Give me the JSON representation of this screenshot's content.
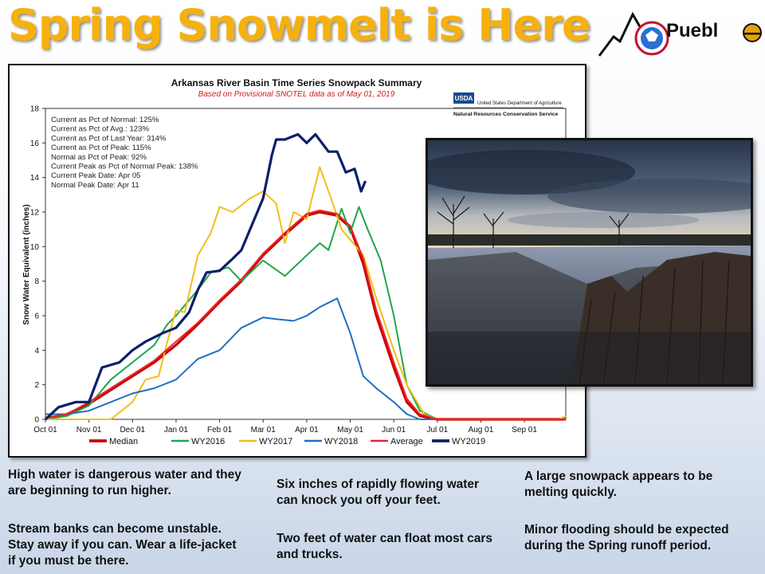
{
  "slide": {
    "title": "Spring Snowmelt is Here",
    "logo_text": "Puebl",
    "notes": {
      "left_1": "High water is dangerous water and they are beginning to run higher.",
      "left_2": "Stream banks can become unstable. Stay away if you can. Wear a life-jacket if you must be there.",
      "mid_1": "Six inches of rapidly flowing water can knock you off your feet.",
      "mid_2": "Two feet of water can float most cars and trucks.",
      "right_1": "A large snowpack appears to be melting quickly.",
      "right_2": "Minor flooding should be expected during the Spring runoff period."
    }
  },
  "chart_data": {
    "type": "line",
    "title": "Arkansas River Basin Time Series Snowpack Summary",
    "subtitle": "Based on Provisional SNOTEL data as of May 01, 2019",
    "ylabel": "Snow Water Equivalent (inches)",
    "xlabel": "",
    "ylim": [
      0,
      18
    ],
    "yticks": [
      0,
      2,
      4,
      6,
      8,
      10,
      12,
      14,
      16,
      18
    ],
    "x_tick_labels": [
      "Oct 01",
      "Nov 01",
      "Dec 01",
      "Jan 01",
      "Feb 01",
      "Mar 01",
      "Apr 01",
      "May 01",
      "Jun 01",
      "Jul 01",
      "Aug 01",
      "Sep 01"
    ],
    "x_unit": "month index from Oct 01",
    "xlim": [
      0,
      11.95
    ],
    "grid": false,
    "legend_position": "bottom",
    "source_logo": {
      "abbr": "USDA",
      "line1": "United States Department of Agriculture",
      "line2": "Natural Resources Conservation Service"
    },
    "stats": [
      "Current  as Pct of Normal: 125%",
      "Current  as Pct of Avg.: 123%",
      "Current  as Pct of Last Year: 314%",
      "Current  as Pct of Peak: 115%",
      "Normal  as Pct of Peak: 92%",
      "Current Peak as Pct of Normal Peak: 138%",
      "Current  Peak Date: Apr 05",
      "Normal Peak Date: Apr 11"
    ],
    "series": [
      {
        "name": "Median",
        "color": "#cc0000",
        "x": [
          0,
          0.5,
          1,
          1.5,
          2,
          2.5,
          3,
          3.5,
          4,
          4.5,
          5,
          5.5,
          6,
          6.3,
          6.7,
          7,
          7.3,
          7.6,
          8,
          8.3,
          8.6,
          9,
          11.95
        ],
        "y": [
          0,
          0.3,
          0.9,
          1.7,
          2.5,
          3.3,
          4.3,
          5.5,
          6.8,
          8.0,
          9.5,
          10.7,
          11.8,
          12.0,
          11.8,
          11.1,
          9.0,
          6.0,
          3.0,
          1.0,
          0.2,
          0,
          0
        ]
      },
      {
        "name": "WY2016",
        "color": "#22a54a",
        "x": [
          0,
          0.5,
          1,
          1.5,
          2,
          2.5,
          2.8,
          3,
          3.5,
          3.8,
          4.2,
          4.5,
          5,
          5.5,
          6,
          6.3,
          6.5,
          6.8,
          7,
          7.2,
          7.4,
          7.7,
          8,
          8.3,
          8.6,
          9,
          11.95
        ],
        "y": [
          0,
          0.2,
          0.8,
          2.3,
          3.3,
          4.3,
          5.5,
          6.0,
          7.5,
          8.5,
          8.8,
          8.0,
          9.2,
          8.3,
          9.5,
          10.2,
          9.8,
          12.2,
          10.8,
          12.3,
          11.0,
          9.2,
          6.0,
          2.0,
          0.5,
          0,
          0
        ]
      },
      {
        "name": "WY2017",
        "color": "#f2be1a",
        "x": [
          0,
          1,
          1.5,
          2,
          2.3,
          2.6,
          2.8,
          3,
          3.2,
          3.5,
          3.8,
          4,
          4.3,
          4.7,
          5,
          5.3,
          5.5,
          5.7,
          6,
          6.3,
          6.6,
          6.8,
          7,
          7.3,
          7.6,
          8,
          8.3,
          8.7,
          9,
          11.8,
          11.95
        ],
        "y": [
          0,
          0,
          0,
          1.0,
          2.3,
          2.5,
          4.5,
          6.3,
          6.2,
          9.5,
          10.8,
          12.3,
          12.0,
          12.8,
          13.2,
          12.5,
          10.2,
          12.0,
          11.6,
          14.6,
          12.5,
          11.0,
          10.4,
          9.5,
          7.0,
          4.0,
          2.0,
          0.3,
          0,
          0,
          0.2
        ]
      },
      {
        "name": "WY2018",
        "color": "#1f70c1",
        "x": [
          0,
          0.5,
          1,
          1.5,
          2,
          2.5,
          3,
          3.5,
          4,
          4.5,
          5,
          5.3,
          5.7,
          6,
          6.3,
          6.7,
          7,
          7.3,
          7.6,
          8,
          8.3,
          8.6,
          9,
          11.95
        ],
        "y": [
          0.3,
          0.3,
          0.5,
          1.0,
          1.5,
          1.8,
          2.3,
          3.5,
          4.0,
          5.3,
          5.9,
          5.8,
          5.7,
          6.0,
          6.5,
          7.0,
          5.0,
          2.5,
          1.8,
          1.0,
          0.3,
          0,
          0,
          0
        ]
      },
      {
        "name": "Average",
        "color": "#e8262a",
        "x": [
          0,
          0.5,
          1,
          1.5,
          2,
          2.5,
          3,
          3.5,
          4,
          4.5,
          5,
          5.5,
          6,
          6.3,
          6.7,
          7,
          7.3,
          7.6,
          8,
          8.3,
          8.6,
          9,
          11.95
        ],
        "y": [
          0.1,
          0.3,
          1.0,
          1.8,
          2.6,
          3.4,
          4.5,
          5.6,
          6.9,
          8.1,
          9.6,
          10.8,
          11.9,
          12.1,
          11.9,
          11.2,
          9.3,
          6.3,
          3.3,
          1.2,
          0.3,
          0,
          0
        ]
      },
      {
        "name": "WY2019",
        "color": "#0a1f6b",
        "x": [
          0,
          0.3,
          0.7,
          1,
          1.3,
          1.7,
          2,
          2.3,
          2.7,
          3,
          3.3,
          3.5,
          3.7,
          4,
          4.3,
          4.5,
          4.7,
          5,
          5.2,
          5.3,
          5.5,
          5.8,
          6,
          6.2,
          6.5,
          6.7,
          6.9,
          7.1,
          7.25,
          7.35
        ],
        "y": [
          0,
          0.7,
          1.0,
          1.0,
          3.0,
          3.3,
          4.0,
          4.5,
          5.0,
          5.3,
          6.2,
          7.5,
          8.5,
          8.6,
          9.3,
          9.8,
          11.0,
          12.8,
          15.3,
          16.2,
          16.2,
          16.5,
          16.0,
          16.5,
          15.5,
          15.5,
          14.3,
          14.5,
          13.2,
          13.8
        ]
      }
    ]
  }
}
